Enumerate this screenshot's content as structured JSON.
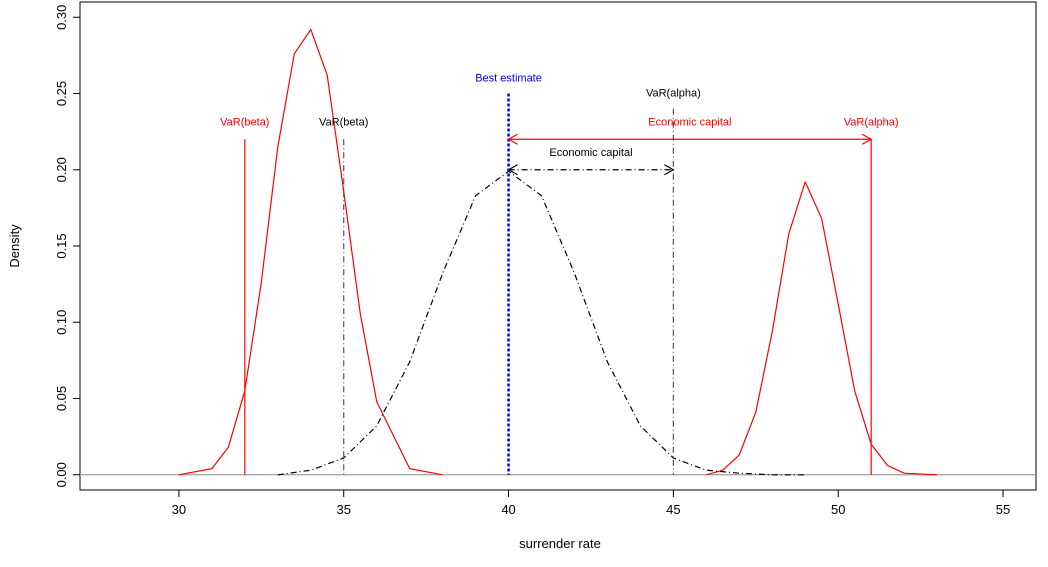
{
  "chart_data": {
    "type": "line",
    "title": "",
    "xlabel": "surrender rate",
    "ylabel": "Density",
    "xlim": [
      27,
      56
    ],
    "ylim": [
      -0.01,
      0.31
    ],
    "x_ticks": [
      30,
      35,
      40,
      45,
      50,
      55
    ],
    "x_tick_labels": [
      "30",
      "35",
      "40",
      "45",
      "50",
      "55"
    ],
    "y_ticks": [
      0.0,
      0.05,
      0.1,
      0.15,
      0.2,
      0.25,
      0.3
    ],
    "y_tick_labels": [
      "0.00",
      "0.05",
      "0.10",
      "0.15",
      "0.20",
      "0.25",
      "0.30"
    ],
    "baseline": {
      "y": 0.0,
      "color": "#a0a0a0"
    },
    "series": [
      {
        "style": "solid",
        "color": "#ff0000",
        "x": [
          30,
          31,
          31.5,
          32,
          32.5,
          33,
          33.5,
          34,
          34.5,
          35,
          35.5,
          36,
          37,
          38
        ],
        "y": [
          0.0,
          0.004,
          0.018,
          0.055,
          0.126,
          0.215,
          0.276,
          0.292,
          0.262,
          0.186,
          0.106,
          0.048,
          0.004,
          0.0
        ]
      },
      {
        "style": "solid",
        "color": "#ff0000",
        "x": [
          46,
          46.5,
          47,
          47.5,
          48,
          48.5,
          49,
          49.5,
          50,
          50.5,
          51,
          51.5,
          52,
          53
        ],
        "y": [
          0.0,
          0.003,
          0.013,
          0.041,
          0.094,
          0.158,
          0.192,
          0.168,
          0.112,
          0.055,
          0.02,
          0.006,
          0.001,
          0.0
        ]
      },
      {
        "style": "dotdash",
        "color": "#000000",
        "x": [
          33,
          34,
          35,
          36,
          37,
          38,
          39,
          40,
          41,
          42,
          43,
          44,
          45,
          46,
          47,
          48,
          49
        ],
        "y": [
          0.0,
          0.003,
          0.011,
          0.032,
          0.074,
          0.132,
          0.183,
          0.199,
          0.183,
          0.132,
          0.074,
          0.032,
          0.011,
          0.003,
          0.001,
          0.0,
          0.0
        ]
      }
    ],
    "verticals": [
      {
        "x": 32,
        "y_top": 0.22,
        "color": "#ff0000",
        "style": "solid"
      },
      {
        "x": 35,
        "y_top": 0.22,
        "color": "#555555",
        "style": "dotdash"
      },
      {
        "x": 40,
        "y_top": 0.25,
        "color": "#0000ff",
        "style": "dotted-thick"
      },
      {
        "x": 45,
        "y_top": 0.24,
        "color": "#555555",
        "style": "dotdash"
      },
      {
        "x": 51,
        "y_top": 0.22,
        "color": "#ff0000",
        "style": "solid"
      }
    ],
    "arrows": [
      {
        "x1": 40,
        "x2": 51,
        "y": 0.22,
        "color": "#ff0000",
        "style": "solid"
      },
      {
        "x1": 40,
        "x2": 45,
        "y": 0.2,
        "color": "#000000",
        "style": "dotdash"
      }
    ],
    "annotations": [
      {
        "text": "VaR(beta)",
        "x": 32,
        "y": 0.229,
        "color": "#ff0000"
      },
      {
        "text": "VaR(beta)",
        "x": 35,
        "y": 0.229,
        "color": "#000000"
      },
      {
        "text": "Best estimate",
        "x": 40,
        "y": 0.258,
        "color": "#0000ff"
      },
      {
        "text": "VaR(alpha)",
        "x": 45,
        "y": 0.248,
        "color": "#000000"
      },
      {
        "text": "Economic capital",
        "x": 45.5,
        "y": 0.229,
        "color": "#ff0000"
      },
      {
        "text": "VaR(alpha)",
        "x": 51,
        "y": 0.229,
        "color": "#ff0000"
      },
      {
        "text": "Economic capital",
        "x": 42.5,
        "y": 0.209,
        "color": "#000000"
      }
    ]
  }
}
